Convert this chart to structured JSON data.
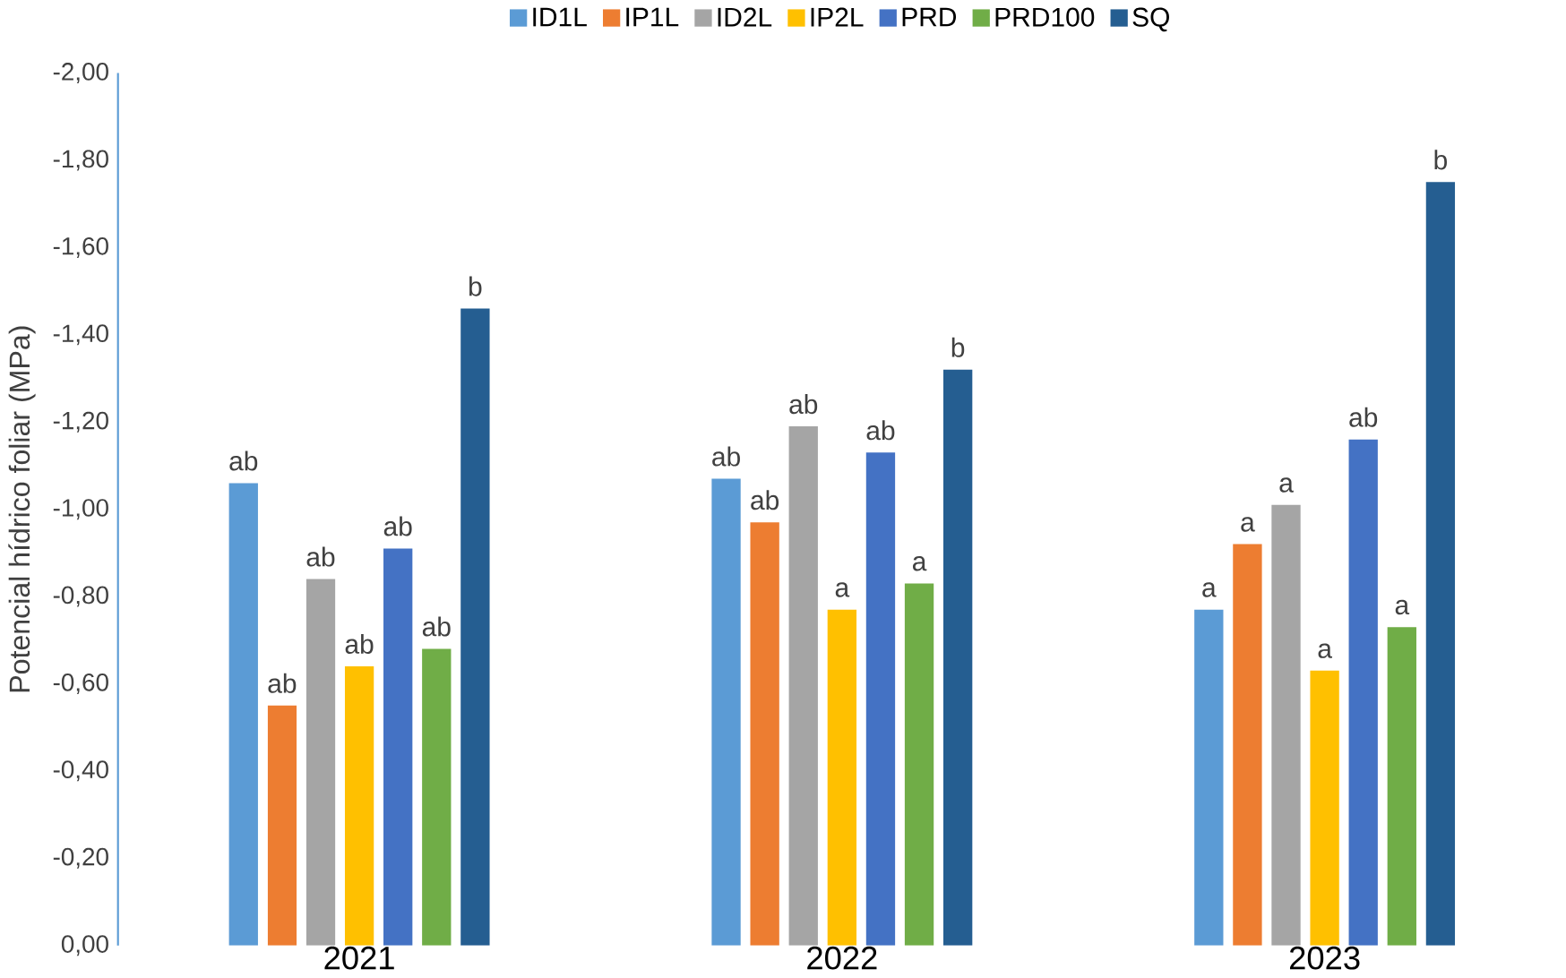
{
  "chart_data": {
    "type": "bar",
    "ylabel": "Potencial hídrico foliar (MPa)",
    "categories": [
      "2021",
      "2022",
      "2023"
    ],
    "series": [
      {
        "name": "ID1L",
        "color": "#5b9bd5",
        "values": [
          -1.06,
          -1.07,
          -0.77
        ],
        "value_labels": [
          "ab",
          "ab",
          "a"
        ]
      },
      {
        "name": "IP1L",
        "color": "#ed7d31",
        "values": [
          -0.55,
          -0.97,
          -0.92
        ],
        "value_labels": [
          "ab",
          "ab",
          "a"
        ]
      },
      {
        "name": "ID2L",
        "color": "#a5a5a5",
        "values": [
          -0.84,
          -1.19,
          -1.01
        ],
        "value_labels": [
          "ab",
          "ab",
          "a"
        ]
      },
      {
        "name": "IP2L",
        "color": "#ffc000",
        "values": [
          -0.64,
          -0.77,
          -0.63
        ],
        "value_labels": [
          "ab",
          "a",
          "a"
        ]
      },
      {
        "name": "PRD",
        "color": "#4472c4",
        "values": [
          -0.91,
          -1.13,
          -1.16
        ],
        "value_labels": [
          "ab",
          "ab",
          "ab"
        ]
      },
      {
        "name": "PRD100",
        "color": "#70ad47",
        "values": [
          -0.68,
          -0.83,
          -0.73
        ],
        "value_labels": [
          "ab",
          "a",
          "a"
        ]
      },
      {
        "name": "SQ",
        "color": "#255e91",
        "values": [
          -1.46,
          -1.32,
          -1.75
        ],
        "value_labels": [
          "b",
          "b",
          "b"
        ]
      }
    ],
    "ylim": [
      0,
      -2
    ],
    "yticks": [
      {
        "value": 0,
        "label": "0,00"
      },
      {
        "value": -0.2,
        "label": "-0,20"
      },
      {
        "value": -0.4,
        "label": "-0,40"
      },
      {
        "value": -0.6,
        "label": "-0,60"
      },
      {
        "value": -0.8,
        "label": "-0,80"
      },
      {
        "value": -1.0,
        "label": "-1,00"
      },
      {
        "value": -1.2,
        "label": "-1,20"
      },
      {
        "value": -1.4,
        "label": "-1,40"
      },
      {
        "value": -1.6,
        "label": "-1,60"
      },
      {
        "value": -1.8,
        "label": "-1,80"
      },
      {
        "value": -2.0,
        "label": "-2,00"
      }
    ],
    "legend": "top",
    "grid": false
  }
}
